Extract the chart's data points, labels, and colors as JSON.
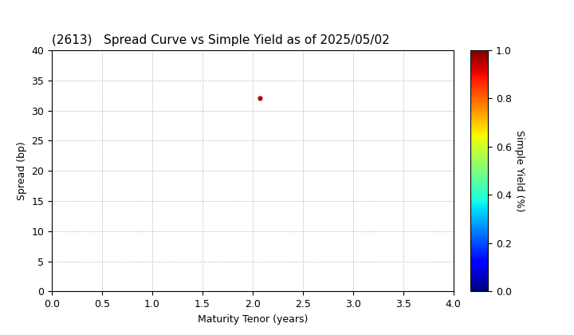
{
  "title": "(2613)   Spread Curve vs Simple Yield as of 2025/05/02",
  "xlabel": "Maturity Tenor (years)",
  "ylabel": "Spread (bp)",
  "colorbar_label": "Simple Yield (%)",
  "xlim": [
    0.0,
    4.0
  ],
  "ylim": [
    0.0,
    40.0
  ],
  "xticks": [
    0.0,
    0.5,
    1.0,
    1.5,
    2.0,
    2.5,
    3.0,
    3.5,
    4.0
  ],
  "yticks": [
    0,
    5,
    10,
    15,
    20,
    25,
    30,
    35,
    40
  ],
  "colorbar_ticks": [
    0.0,
    0.2,
    0.4,
    0.6,
    0.8,
    1.0
  ],
  "scatter_x": [
    2.07
  ],
  "scatter_y": [
    32.0
  ],
  "scatter_color": [
    0.95
  ],
  "point_size": 12,
  "grid_color": "#aaaaaa",
  "background_color": "#ffffff",
  "title_fontsize": 11,
  "axis_fontsize": 9,
  "colorbar_fontsize": 9
}
